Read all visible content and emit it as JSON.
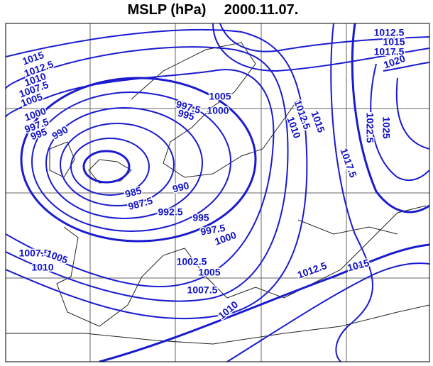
{
  "header": {
    "title": "MSLP (hPa)",
    "date": "2000.11.07."
  },
  "contour_labels": [
    "1012.5",
    "1015",
    "1017.5",
    "1020",
    "1015",
    "1012.5",
    "1010",
    "1007.5",
    "1005",
    "1005",
    "997.5",
    "1000",
    "995",
    "1000",
    "997.5",
    "995",
    "990",
    "1015",
    "1012.5",
    "1010",
    "1022.5",
    "1025",
    "1017.5",
    "985",
    "987.5",
    "990",
    "992.5",
    "995",
    "997.5",
    "1000",
    "1007.5",
    "1005",
    "1010",
    "1002.5",
    "1005",
    "1012.5",
    "1015",
    "1007.5",
    "1010"
  ]
}
